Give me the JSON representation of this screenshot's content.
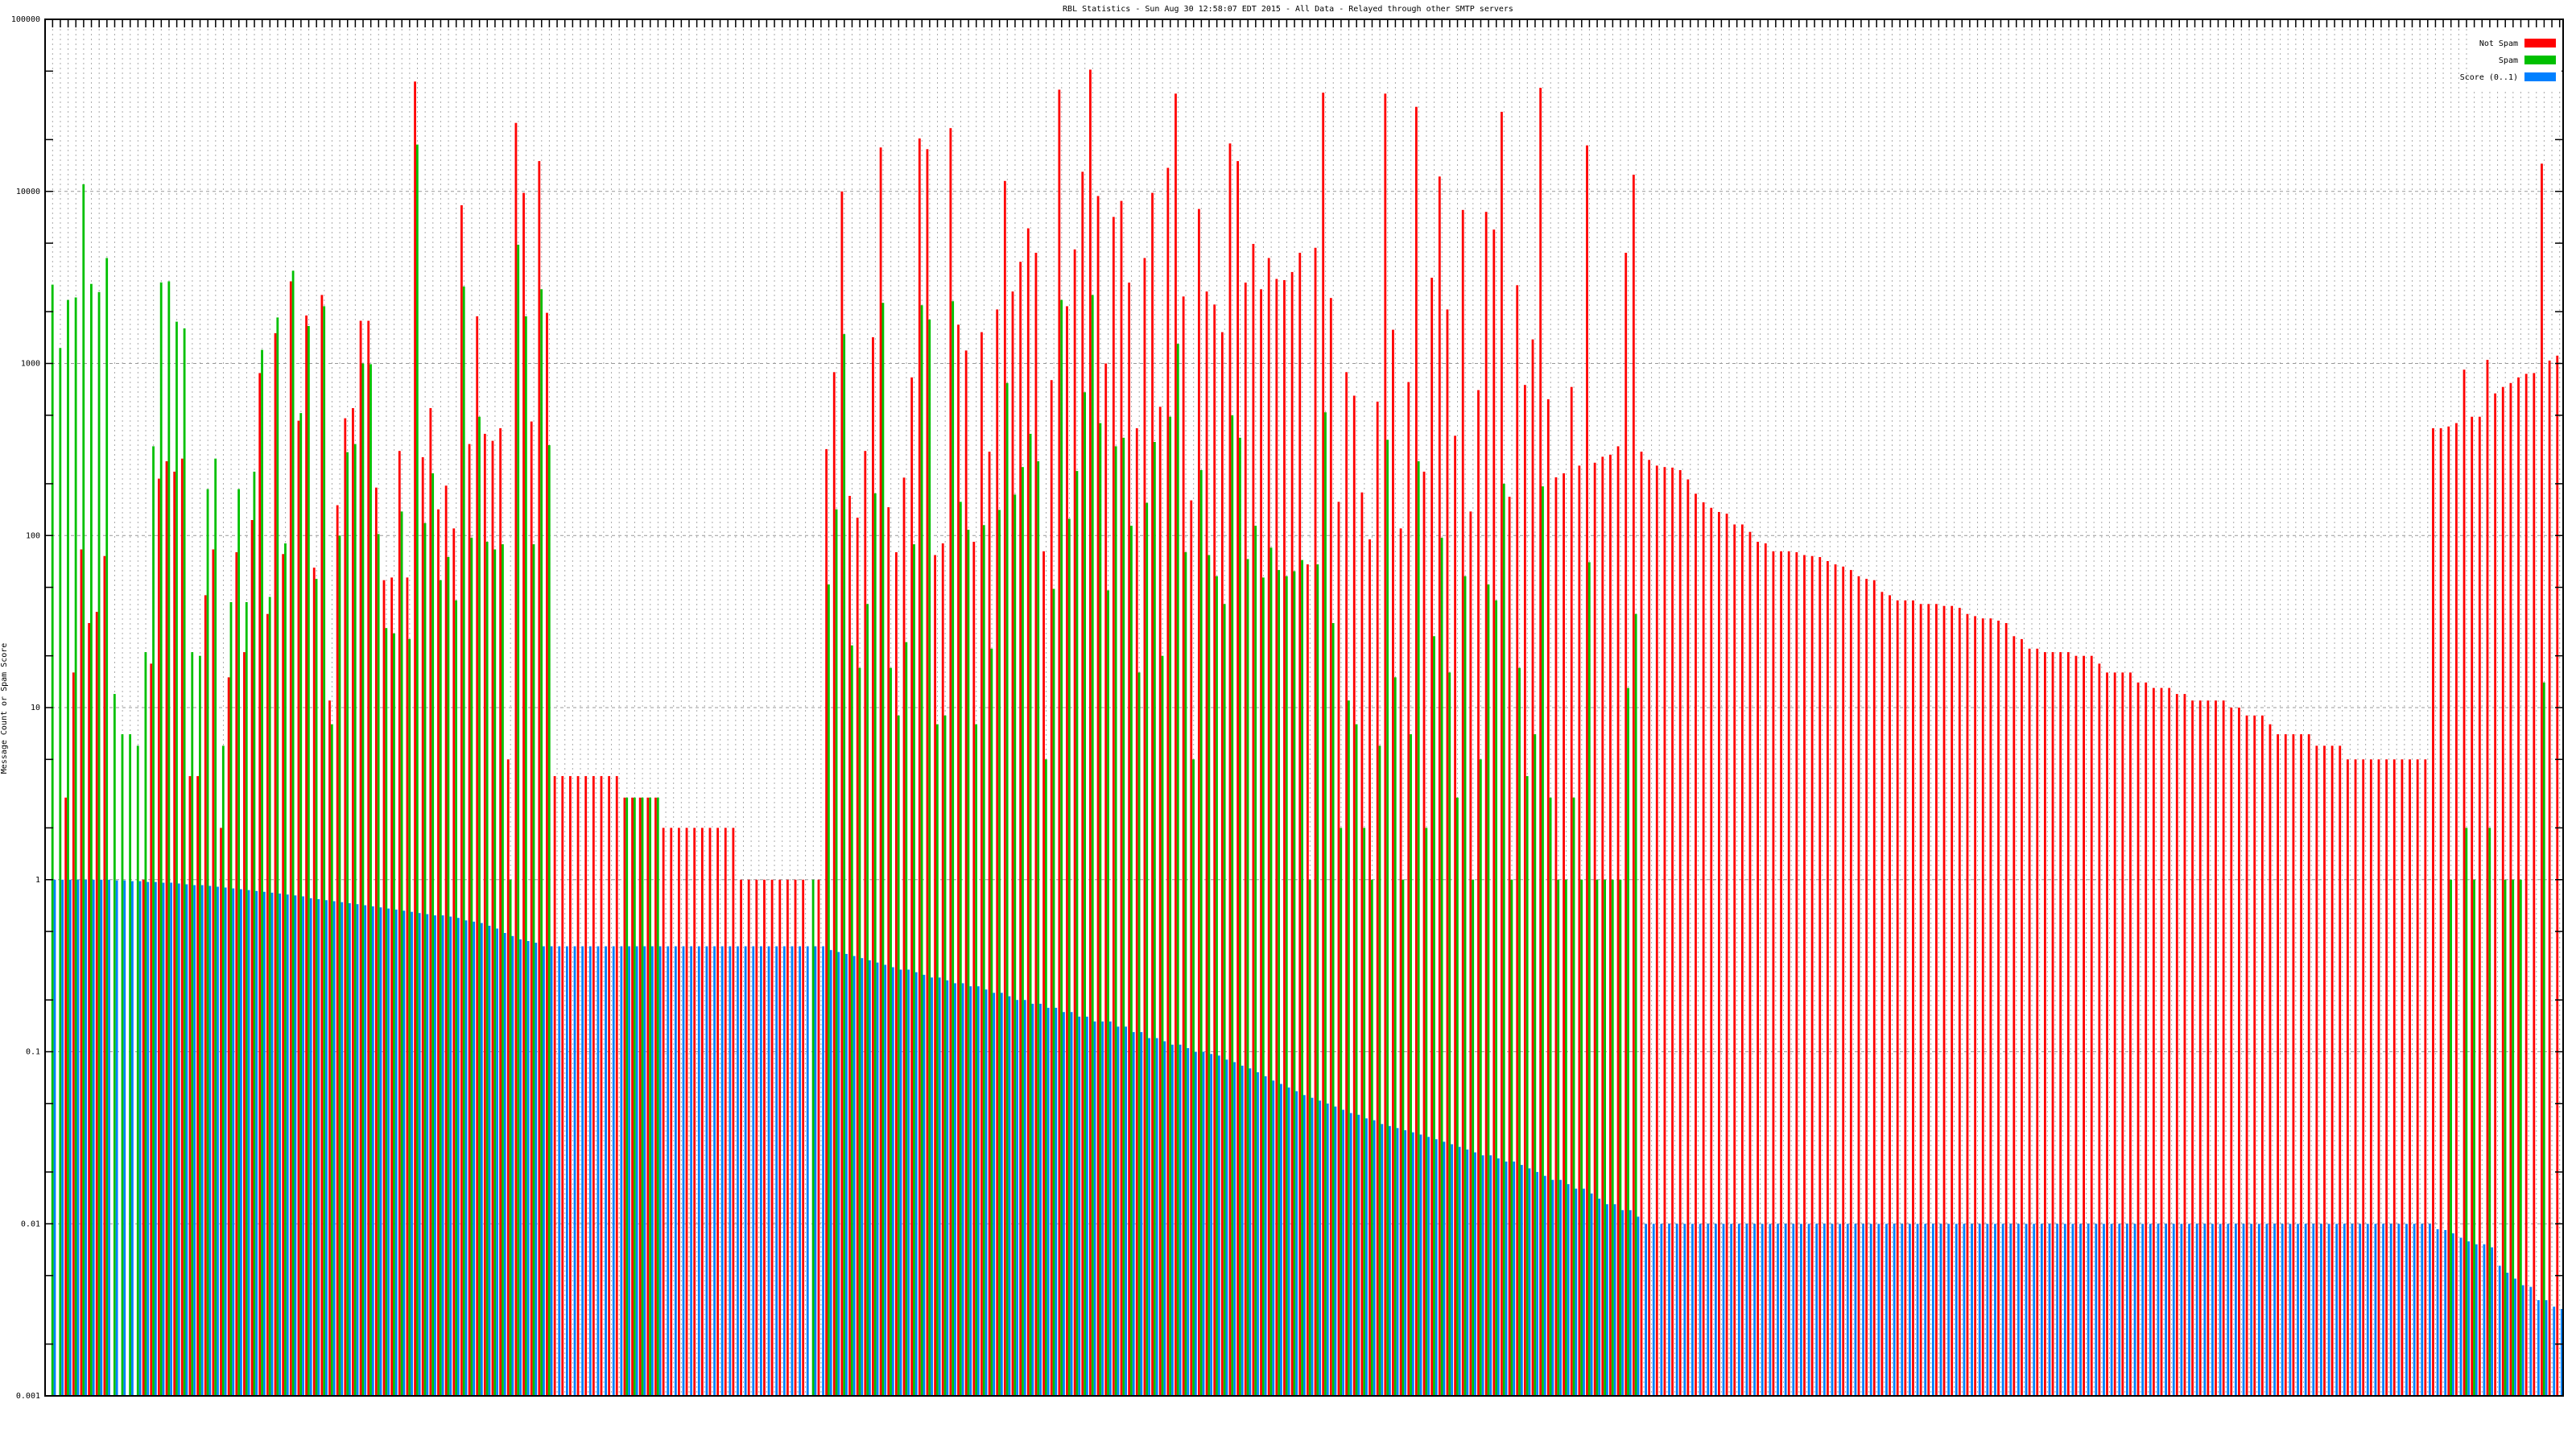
{
  "chart_data": {
    "type": "bar",
    "title": "RBL Statistics - Sun Aug 30 12:58:07 EDT 2015 - All Data - Relayed through other SMTP servers",
    "xlabel": "",
    "ylabel": "Message Count or Spam Score",
    "yscale": "log",
    "ylim": [
      0.001,
      100000
    ],
    "yticks": [
      "100000",
      "10000",
      "1000",
      "100",
      "10",
      "1",
      "0.1",
      "0.01",
      "0.001"
    ],
    "grid": true,
    "legend_position": "top-right",
    "colors": {
      "not_spam": "#ff0000",
      "spam": "#00c000",
      "score": "#0080ff"
    },
    "series": [
      {
        "name": "Not Spam",
        "key": "not_spam",
        "values": [
          null,
          null,
          3,
          16,
          83,
          31,
          36,
          76,
          null,
          null,
          null,
          null,
          1,
          18,
          214,
          270,
          235,
          280,
          4,
          4,
          45,
          83,
          2,
          15,
          80,
          21,
          123,
          880,
          35,
          1500,
          78,
          3000,
          465,
          1900,
          65,
          2500,
          11,
          150,
          480,
          550,
          1770,
          1770,
          190,
          55,
          57,
          310,
          57,
          43500,
          285,
          550,
          142,
          195,
          110,
          8300,
          340,
          1880,
          390,
          355,
          420,
          5,
          25000,
          9800,
          460,
          15000,
          1970,
          4,
          4,
          4,
          4,
          4,
          4,
          4,
          4,
          4,
          3,
          3,
          3,
          3,
          3,
          2,
          2,
          2,
          2,
          2,
          2,
          2,
          2,
          2,
          2,
          1,
          1,
          1,
          1,
          1,
          1,
          1,
          1,
          1,
          null,
          1,
          318,
          890,
          10000,
          170,
          127,
          310,
          1420,
          18000,
          146,
          80,
          217,
          830,
          20300,
          17600,
          77,
          90,
          23300,
          1680,
          1190,
          92,
          1520,
          307,
          2060,
          11500,
          2620,
          3900,
          6100,
          4400,
          81,
          800,
          39000,
          2150,
          4600,
          13000,
          51000,
          9400,
          1000,
          7100,
          8800,
          2950,
          420,
          4100,
          9800,
          560,
          13700,
          37000,
          2450,
          160,
          7900,
          2620,
          2200,
          1520,
          19000,
          15000,
          2950,
          4950,
          2700,
          4100,
          3100,
          3050,
          3400,
          4400,
          68,
          4700,
          37500,
          2400,
          157,
          890,
          650,
          178,
          95,
          600,
          37000,
          1570,
          110,
          780,
          31000,
          235,
          3150,
          12200,
          2060,
          380,
          7800,
          138,
          700,
          7600,
          6000,
          29000,
          168,
          2850,
          750,
          1380,
          40000,
          620,
          218,
          230,
          730,
          255,
          18500,
          265,
          287,
          295,
          330,
          4400,
          12500,
          307,
          275,
          255,
          250,
          248,
          240,
          212,
          175,
          156,
          145,
          137,
          134,
          116,
          116,
          105,
          92,
          90,
          81,
          81,
          81,
          80,
          77,
          76,
          75,
          71,
          68,
          66,
          63,
          58,
          56,
          55,
          47,
          45,
          42,
          42,
          42,
          40,
          40,
          40,
          39,
          39,
          38,
          35,
          34,
          33,
          33,
          32,
          31,
          26,
          25,
          22,
          22,
          21,
          21,
          21,
          21,
          20,
          20,
          20,
          18,
          16,
          16,
          16,
          16,
          14,
          14,
          13,
          13,
          13,
          12,
          12,
          11,
          11,
          11,
          11,
          11,
          10,
          10,
          9,
          9,
          9,
          8,
          7,
          7,
          7,
          7,
          7,
          6,
          6,
          6,
          6,
          5,
          5,
          5,
          5,
          5,
          5,
          5,
          5,
          5,
          5,
          5,
          420,
          420,
          430,
          450,
          920,
          490,
          490,
          1050,
          670,
          730,
          770,
          830,
          870,
          880,
          14500,
          1040,
          1110
        ]
      },
      {
        "name": "Spam",
        "key": "spam",
        "values": [
          2870,
          1230,
          2340,
          2420,
          11000,
          2900,
          2600,
          4100,
          12,
          7,
          7,
          6,
          21,
          330,
          2960,
          3000,
          1750,
          1600,
          21,
          20,
          186,
          280,
          6,
          41,
          186,
          41,
          235,
          1200,
          44,
          1850,
          90,
          3460,
          515,
          1650,
          56,
          2150,
          8,
          100,
          305,
          340,
          1000,
          990,
          102,
          29,
          27,
          138,
          25,
          18700,
          118,
          230,
          55,
          75,
          42,
          2800,
          97,
          490,
          92,
          83,
          89,
          1,
          4900,
          1880,
          89,
          2700,
          335,
          null,
          null,
          null,
          null,
          null,
          null,
          null,
          null,
          null,
          3,
          3,
          3,
          3,
          3,
          null,
          null,
          null,
          null,
          null,
          null,
          null,
          null,
          null,
          null,
          null,
          null,
          null,
          null,
          null,
          null,
          null,
          null,
          null,
          1,
          null,
          52,
          142,
          1480,
          23,
          17,
          40,
          176,
          2250,
          17,
          9,
          24,
          89,
          2180,
          1800,
          8,
          9,
          2300,
          157,
          108,
          8,
          115,
          22,
          141,
          770,
          173,
          250,
          390,
          270,
          5,
          49,
          2340,
          125,
          237,
          680,
          2500,
          450,
          48,
          330,
          370,
          114,
          16,
          155,
          350,
          20,
          490,
          1300,
          80,
          5,
          240,
          77,
          58,
          40,
          500,
          370,
          73,
          114,
          57,
          85,
          63,
          58,
          62,
          72,
          1,
          68,
          520,
          31,
          2,
          11,
          8,
          2,
          1,
          6,
          360,
          15,
          1,
          7,
          270,
          2,
          26,
          97,
          16,
          3,
          58,
          1,
          5,
          52,
          42,
          200,
          1,
          17,
          4,
          7,
          193,
          3,
          1,
          1,
          3,
          1,
          70,
          1,
          1,
          1,
          1,
          13,
          35,
          null,
          null,
          null,
          null,
          null,
          null,
          null,
          null,
          null,
          null,
          null,
          null,
          null,
          null,
          null,
          null,
          null,
          null,
          null,
          null,
          null,
          null,
          null,
          null,
          null,
          null,
          null,
          null,
          null,
          null,
          null,
          null,
          null,
          null,
          null,
          null,
          null,
          null,
          null,
          null,
          null,
          null,
          null,
          null,
          null,
          null,
          null,
          null,
          null,
          null,
          null,
          null,
          null,
          null,
          null,
          null,
          null,
          null,
          null,
          null,
          null,
          null,
          null,
          null,
          null,
          null,
          null,
          null,
          null,
          null,
          null,
          null,
          null,
          null,
          null,
          null,
          null,
          null,
          null,
          null,
          null,
          null,
          null,
          null,
          null,
          null,
          null,
          null,
          null,
          null,
          null,
          null,
          null,
          null,
          null,
          null,
          null,
          null,
          null,
          null,
          null,
          null,
          null,
          null,
          1,
          null,
          2,
          1,
          null,
          2,
          null,
          1,
          1,
          1,
          null,
          null,
          14,
          null,
          null
        ]
      },
      {
        "name": "Score (0..1)",
        "key": "score",
        "values": [
          1,
          1,
          1,
          1,
          1,
          1,
          1,
          1,
          0.99,
          0.99,
          0.98,
          0.98,
          0.97,
          0.97,
          0.96,
          0.96,
          0.95,
          0.94,
          0.93,
          0.93,
          0.92,
          0.91,
          0.9,
          0.89,
          0.88,
          0.87,
          0.86,
          0.85,
          0.84,
          0.83,
          0.82,
          0.81,
          0.8,
          0.78,
          0.77,
          0.76,
          0.75,
          0.74,
          0.73,
          0.72,
          0.71,
          0.7,
          0.69,
          0.68,
          0.67,
          0.66,
          0.65,
          0.64,
          0.63,
          0.62,
          0.62,
          0.61,
          0.6,
          0.58,
          0.57,
          0.56,
          0.54,
          0.52,
          0.49,
          0.47,
          0.45,
          0.44,
          0.43,
          0.41,
          0.41,
          0.41,
          0.41,
          0.41,
          0.41,
          0.41,
          0.41,
          0.41,
          0.41,
          0.41,
          0.41,
          0.41,
          0.41,
          0.41,
          0.41,
          0.41,
          0.41,
          0.41,
          0.41,
          0.41,
          0.41,
          0.41,
          0.41,
          0.41,
          0.41,
          0.41,
          0.41,
          0.41,
          0.41,
          0.41,
          0.41,
          0.41,
          0.41,
          0.41,
          0.41,
          0.41,
          0.39,
          0.38,
          0.37,
          0.36,
          0.35,
          0.34,
          0.33,
          0.32,
          0.31,
          0.3,
          0.3,
          0.29,
          0.28,
          0.27,
          0.27,
          0.26,
          0.25,
          0.25,
          0.24,
          0.24,
          0.23,
          0.22,
          0.22,
          0.21,
          0.2,
          0.2,
          0.19,
          0.19,
          0.18,
          0.18,
          0.17,
          0.17,
          0.16,
          0.16,
          0.15,
          0.15,
          0.15,
          0.14,
          0.14,
          0.13,
          0.13,
          0.12,
          0.12,
          0.115,
          0.11,
          0.11,
          0.105,
          0.1,
          0.1,
          0.097,
          0.095,
          0.09,
          0.087,
          0.083,
          0.08,
          0.076,
          0.072,
          0.068,
          0.065,
          0.062,
          0.059,
          0.056,
          0.054,
          0.052,
          0.05,
          0.048,
          0.046,
          0.044,
          0.043,
          0.041,
          0.04,
          0.038,
          0.037,
          0.036,
          0.035,
          0.034,
          0.033,
          0.032,
          0.031,
          0.03,
          0.029,
          0.028,
          0.027,
          0.026,
          0.025,
          0.025,
          0.024,
          0.023,
          0.023,
          0.022,
          0.021,
          0.02,
          0.019,
          0.018,
          0.018,
          0.017,
          0.016,
          0.016,
          0.015,
          0.014,
          0.013,
          0.013,
          0.012,
          0.012,
          0.011,
          0.01,
          0.01,
          0.01,
          0.01,
          0.01,
          0.01,
          0.01,
          0.01,
          0.01,
          0.01,
          0.01,
          0.01,
          0.01,
          0.01,
          0.01,
          0.01,
          0.01,
          0.01,
          0.01,
          0.01,
          0.01,
          0.01,
          0.01,
          0.01,
          0.01,
          0.01,
          0.01,
          0.01,
          0.01,
          0.01,
          0.01,
          0.01,
          0.01,
          0.01,
          0.01,
          0.01,
          0.01,
          0.01,
          0.01,
          0.01,
          0.01,
          0.01,
          0.01,
          0.01,
          0.01,
          0.01,
          0.01,
          0.01,
          0.01,
          0.01,
          0.01,
          0.01,
          0.01,
          0.01,
          0.01,
          0.01,
          0.01,
          0.01,
          0.01,
          0.01,
          0.01,
          0.01,
          0.01,
          0.01,
          0.01,
          0.01,
          0.01,
          0.01,
          0.01,
          0.01,
          0.01,
          0.01,
          0.01,
          0.01,
          0.01,
          0.01,
          0.01,
          0.01,
          0.01,
          0.01,
          0.01,
          0.01,
          0.01,
          0.01,
          0.01,
          0.01,
          0.01,
          0.01,
          0.01,
          0.01,
          0.01,
          0.01,
          0.01,
          0.01,
          0.01,
          0.01,
          0.01,
          0.01,
          0.01,
          0.01,
          0.01,
          0.01,
          0.0093,
          0.0092,
          0.0088,
          0.0083,
          0.0079,
          0.0076,
          0.0076,
          0.0073,
          0.0057,
          0.0052,
          0.0048,
          0.0044,
          0.0043,
          0.0036,
          0.0036,
          0.0033,
          0.0032
        ]
      }
    ]
  }
}
